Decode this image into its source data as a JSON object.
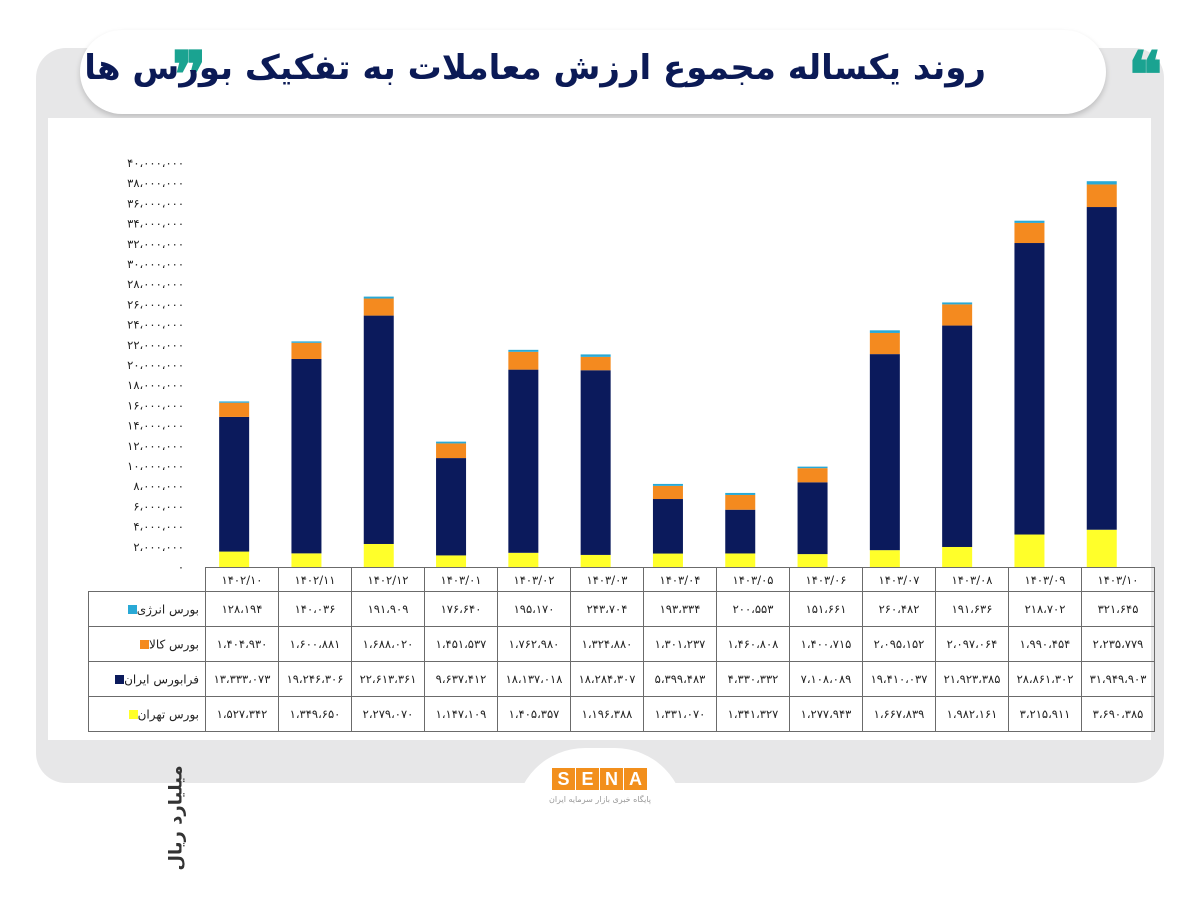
{
  "title": "روند یکساله مجموع ارزش معاملات به تفکیک بورس ها",
  "quote_open": "❞",
  "quote_close": "❝",
  "logo": {
    "letters": [
      "S",
      "E",
      "N",
      "A"
    ],
    "subtitle": "پایگاه خبری بازار سرمایه ایران"
  },
  "colors": {
    "background_frame": "#e7e7e8",
    "title_text": "#0b1a56",
    "quote": "#1aa391",
    "energy": "#29a9d6",
    "commodity": "#f48a1f",
    "farabourse": "#0b1a5c",
    "tehran": "#ffff2a",
    "logo": "#f28f1c"
  },
  "chart_data": {
    "type": "bar",
    "stacked": true,
    "ylabel": "میلیارد ریال",
    "ylim": [
      0,
      40000000
    ],
    "ytick_labels": [
      "۰",
      "۲،۰۰۰،۰۰۰",
      "۴،۰۰۰،۰۰۰",
      "۶،۰۰۰،۰۰۰",
      "۸،۰۰۰،۰۰۰",
      "۱۰،۰۰۰،۰۰۰",
      "۱۲،۰۰۰،۰۰۰",
      "۱۴،۰۰۰،۰۰۰",
      "۱۶،۰۰۰،۰۰۰",
      "۱۸،۰۰۰،۰۰۰",
      "۲۰،۰۰۰،۰۰۰",
      "۲۲،۰۰۰،۰۰۰",
      "۲۴،۰۰۰،۰۰۰",
      "۲۶،۰۰۰،۰۰۰",
      "۲۸،۰۰۰،۰۰۰",
      "۳۰،۰۰۰،۰۰۰",
      "۳۲،۰۰۰،۰۰۰",
      "۳۴،۰۰۰،۰۰۰",
      "۳۶،۰۰۰،۰۰۰",
      "۳۸،۰۰۰،۰۰۰",
      "۴۰،۰۰۰،۰۰۰"
    ],
    "categories": [
      "۱۴۰۲/۱۰",
      "۱۴۰۲/۱۱",
      "۱۴۰۲/۱۲",
      "۱۴۰۳/۰۱",
      "۱۴۰۳/۰۲",
      "۱۴۰۳/۰۳",
      "۱۴۰۳/۰۴",
      "۱۴۰۳/۰۵",
      "۱۴۰۳/۰۶",
      "۱۴۰۳/۰۷",
      "۱۴۰۳/۰۸",
      "۱۴۰۳/۰۹",
      "۱۴۰۳/۱۰"
    ],
    "series": [
      {
        "name": "بورس انرژی",
        "color": "#29a9d6",
        "values": [
          128194,
          140036,
          191909,
          176640,
          195170,
          243704,
          193334,
          200553,
          151661,
          260482,
          191636,
          218702,
          321645
        ],
        "labels": [
          "۱۲۸،۱۹۴",
          "۱۴۰،۰۳۶",
          "۱۹۱،۹۰۹",
          "۱۷۶،۶۴۰",
          "۱۹۵،۱۷۰",
          "۲۴۳،۷۰۴",
          "۱۹۳،۳۳۴",
          "۲۰۰،۵۵۳",
          "۱۵۱،۶۶۱",
          "۲۶۰،۴۸۲",
          "۱۹۱،۶۳۶",
          "۲۱۸،۷۰۲",
          "۳۲۱،۶۴۵"
        ]
      },
      {
        "name": "بورس کالا",
        "color": "#f48a1f",
        "values": [
          1404930,
          1600881,
          1688020,
          1451537,
          1762980,
          1324880,
          1301237,
          1460808,
          1400715,
          2095152,
          2097064,
          1990454,
          2235779
        ],
        "labels": [
          "۱،۴۰۴،۹۳۰",
          "۱،۶۰۰،۸۸۱",
          "۱،۶۸۸،۰۲۰",
          "۱،۴۵۱،۵۳۷",
          "۱،۷۶۲،۹۸۰",
          "۱،۳۲۴،۸۸۰",
          "۱،۳۰۱،۲۳۷",
          "۱،۴۶۰،۸۰۸",
          "۱،۴۰۰،۷۱۵",
          "۲،۰۹۵،۱۵۲",
          "۲،۰۹۷،۰۶۴",
          "۱،۹۹۰،۴۵۴",
          "۲،۲۳۵،۷۷۹"
        ]
      },
      {
        "name": "فرابورس ایران",
        "color": "#0b1a5c",
        "values": [
          13333073,
          19246306,
          22613361,
          9637412,
          18137018,
          18284307,
          5399483,
          4330332,
          7108089,
          19410037,
          21923385,
          28861302,
          31949903
        ],
        "labels": [
          "۱۳،۳۳۳،۰۷۳",
          "۱۹،۲۴۶،۳۰۶",
          "۲۲،۶۱۳،۳۶۱",
          "۹،۶۳۷،۴۱۲",
          "۱۸،۱۳۷،۰۱۸",
          "۱۸،۲۸۴،۳۰۷",
          "۵،۳۹۹،۴۸۳",
          "۴،۳۳۰،۳۳۲",
          "۷،۱۰۸،۰۸۹",
          "۱۹،۴۱۰،۰۳۷",
          "۲۱،۹۲۳،۳۸۵",
          "۲۸،۸۶۱،۳۰۲",
          "۳۱،۹۴۹،۹۰۳"
        ]
      },
      {
        "name": "بورس تهران",
        "color": "#ffff2a",
        "values": [
          1527342,
          1349650,
          2279070,
          1147109,
          1405357,
          1196388,
          1331070,
          1341327,
          1277943,
          1667839,
          1982161,
          3215911,
          3690385
        ],
        "labels": [
          "۱،۵۲۷،۳۴۲",
          "۱،۳۴۹،۶۵۰",
          "۲،۲۷۹،۰۷۰",
          "۱،۱۴۷،۱۰۹",
          "۱،۴۰۵،۳۵۷",
          "۱،۱۹۶،۳۸۸",
          "۱،۳۳۱،۰۷۰",
          "۱،۳۴۱،۳۲۷",
          "۱،۲۷۷،۹۴۳",
          "۱،۶۶۷،۸۳۹",
          "۱،۹۸۲،۱۶۱",
          "۳،۲۱۵،۹۱۱",
          "۳،۶۹۰،۳۸۵"
        ]
      }
    ],
    "stack_order_bottom_to_top": [
      "بورس تهران",
      "فرابورس ایران",
      "بورس کالا",
      "بورس انرژی"
    ],
    "grid": false,
    "legend": "data-table-left"
  }
}
